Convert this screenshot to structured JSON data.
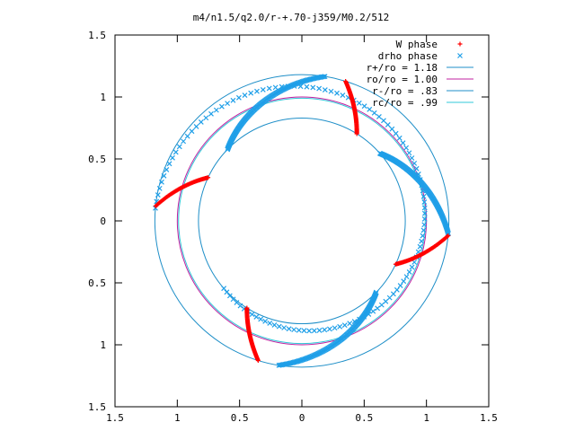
{
  "chart_data": {
    "type": "scatter",
    "title": "m4/n1.5/q2.0/r-+.70-j359/M0.2/512",
    "xlabel": "",
    "ylabel": "",
    "xlim": [
      -1.5,
      1.5
    ],
    "ylim": [
      -1.5,
      1.5
    ],
    "x_ticks": [
      "1.5",
      "1",
      "0.5",
      "0",
      "0.5",
      "1",
      "1.5"
    ],
    "y_ticks": [
      "1.5",
      "1",
      "0.5",
      "0",
      "0.5",
      "1",
      "1.5"
    ],
    "grid": false,
    "legend_position": "top-right",
    "series": [
      {
        "name": "W phase",
        "kind": "points",
        "marker": "plus",
        "color": "#ff0000",
        "arcs": [
          {
            "theta_start": 174.2,
            "theta_end": 155.1,
            "r_start": 1.18,
            "r_end": 0.83,
            "samples": 60
          },
          {
            "theta_start": 72.7,
            "theta_end": 57.9,
            "r_start": 1.18,
            "r_end": 0.83,
            "samples": 60
          },
          {
            "theta_start": -5.8,
            "theta_end": -24.9,
            "r_start": 1.18,
            "r_end": 0.83,
            "samples": 60
          },
          {
            "theta_start": -107.3,
            "theta_end": -122.1,
            "r_start": 1.18,
            "r_end": 0.83,
            "samples": 60
          }
        ]
      },
      {
        "name": "drho phase",
        "kind": "points",
        "marker": "cross",
        "color": "#1f9fe8",
        "arcs": [
          {
            "theta_start": 81.0,
            "theta_end": 136.0,
            "r_start": 1.18,
            "r_end": 0.83,
            "samples": 120
          },
          {
            "theta_start": 41.0,
            "theta_end": -5.0,
            "r_start": 0.83,
            "r_end": 1.18,
            "samples": 120
          },
          {
            "theta_start": -99.0,
            "theta_end": -44.0,
            "r_start": 1.18,
            "r_end": 0.83,
            "samples": 120
          },
          {
            "theta_start": -139.0,
            "theta_end": 175.0,
            "r_start": 0.83,
            "r_end": 1.18,
            "samples": 120
          }
        ]
      },
      {
        "name": "r+/ro = 1.18",
        "kind": "circle",
        "radius": 1.18,
        "color": "#1f8fc8"
      },
      {
        "name": "ro/ro = 1.00",
        "kind": "circle",
        "radius": 1.0,
        "color": "#c020a0"
      },
      {
        "name": "r-/ro = .83",
        "kind": "circle",
        "radius": 0.83,
        "color": "#1f8fc8"
      },
      {
        "name": "rc/ro = .99",
        "kind": "circle",
        "radius": 0.99,
        "color": "#30c8d8"
      }
    ]
  }
}
